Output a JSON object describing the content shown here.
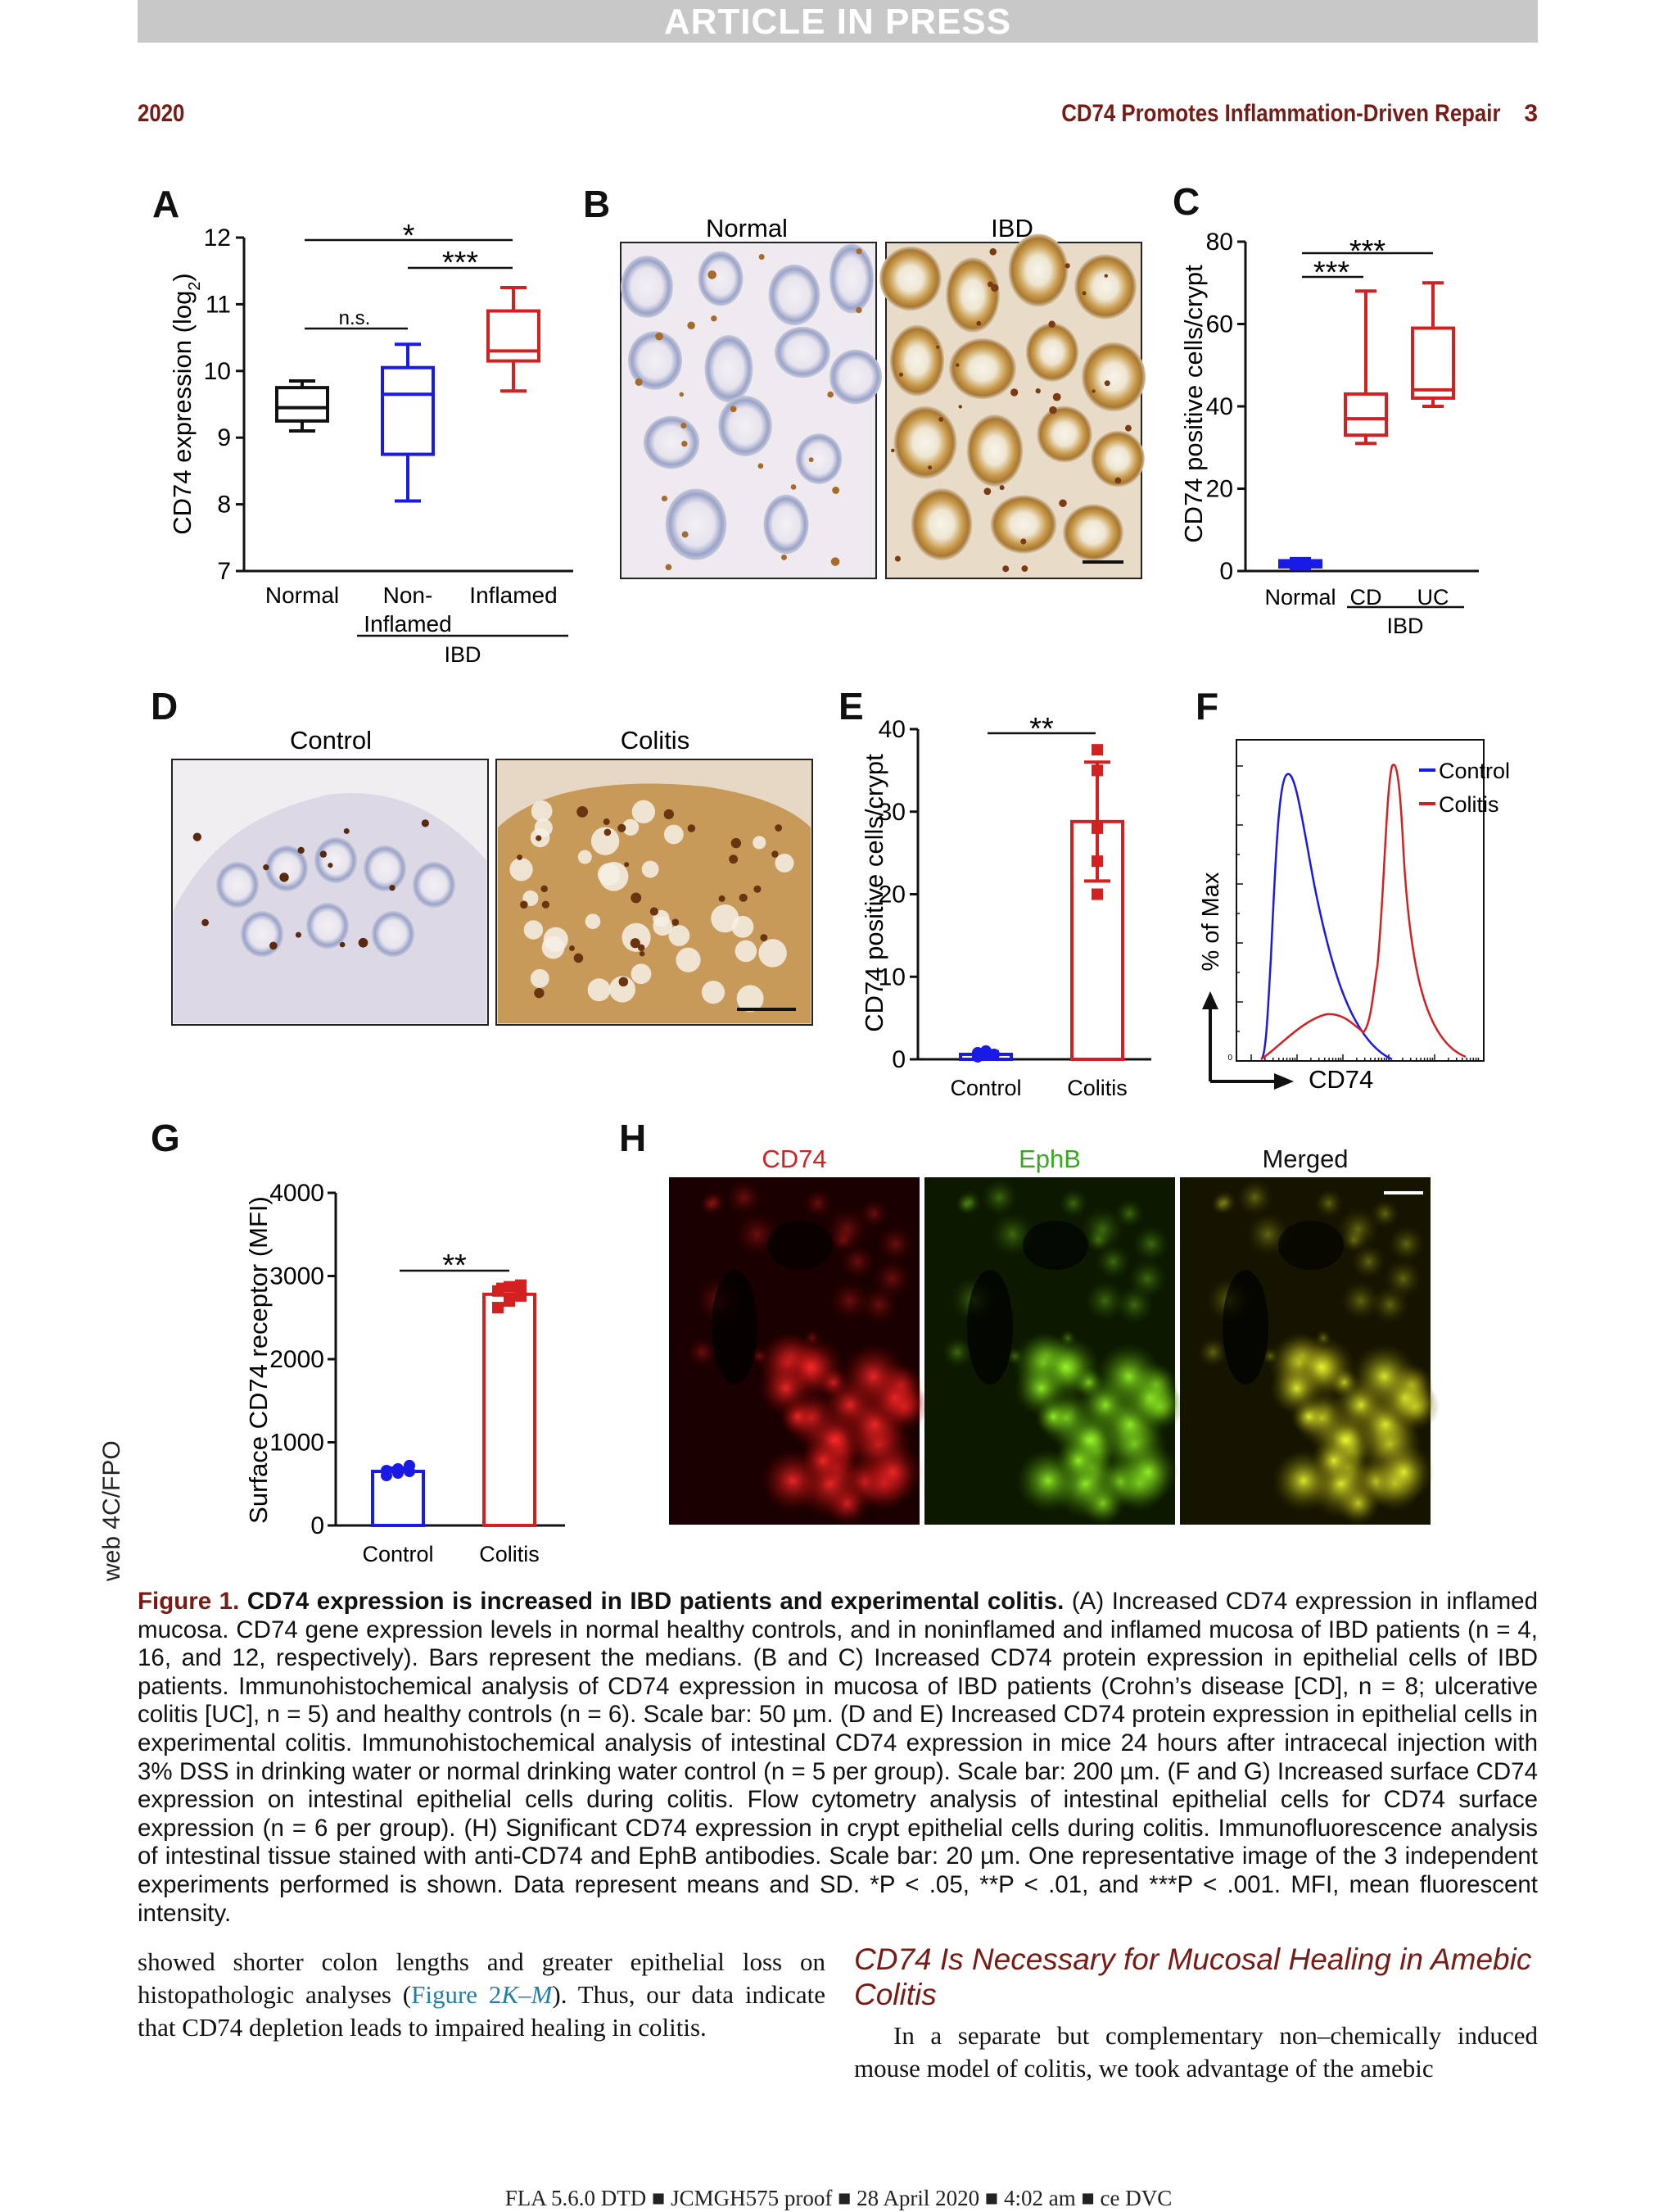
{
  "banner": "ARTICLE IN PRESS",
  "running_head": {
    "year": "2020",
    "title": "CD74 Promotes Inflammation-Driven Repair",
    "page": "3"
  },
  "side_note": "web 4C/FPO",
  "panels": {
    "A": {
      "letter": "A"
    },
    "B": {
      "letter": "B",
      "left_label": "Normal",
      "right_label": "IBD"
    },
    "C": {
      "letter": "C"
    },
    "D": {
      "letter": "D",
      "left_label": "Control",
      "right_label": "Colitis"
    },
    "E": {
      "letter": "E"
    },
    "F": {
      "letter": "F"
    },
    "G": {
      "letter": "G"
    },
    "H": {
      "letter": "H",
      "ch1": "CD74",
      "ch2": "EphB",
      "ch3": "Merged"
    }
  },
  "colors": {
    "normal": "#111111",
    "noninflamed": "#1a1ae6",
    "inflamed": "#d42020",
    "control": "#1a1ae6",
    "colitis": "#d42020"
  },
  "chart_data": [
    {
      "panel": "A",
      "type": "box",
      "ylabel": "CD74 expression (log",
      "ylabel_sub": "2",
      "ylabel_end": ")",
      "ylim": [
        7,
        12
      ],
      "yticks": [
        7,
        8,
        9,
        10,
        11,
        12
      ],
      "categories": [
        "Normal",
        "Non-\nInflamed",
        "Inflamed"
      ],
      "group_label": "IBD",
      "boxes": [
        {
          "name": "Normal",
          "min": 9.1,
          "q1": 9.25,
          "median": 9.45,
          "q3": 9.75,
          "max": 9.85
        },
        {
          "name": "Non-Inflamed",
          "min": 8.05,
          "q1": 8.75,
          "median": 9.65,
          "q3": 10.05,
          "max": 10.4
        },
        {
          "name": "Inflamed",
          "min": 9.7,
          "q1": 10.15,
          "median": 10.3,
          "q3": 10.9,
          "max": 11.25
        }
      ],
      "annotations": [
        "*",
        "***",
        "n.s."
      ]
    },
    {
      "panel": "C",
      "type": "box",
      "ylabel": "CD74 positive cells/crypt",
      "ylim": [
        0,
        80
      ],
      "yticks": [
        0,
        20,
        40,
        60,
        80
      ],
      "categories": [
        "Normal",
        "CD",
        "UC"
      ],
      "group_label": "IBD",
      "boxes": [
        {
          "name": "Normal",
          "min": 0.5,
          "q1": 1,
          "median": 1.5,
          "q3": 2.5,
          "max": 3
        },
        {
          "name": "CD",
          "min": 31,
          "q1": 33,
          "median": 37,
          "q3": 43,
          "max": 68
        },
        {
          "name": "UC",
          "min": 40,
          "q1": 42,
          "median": 44,
          "q3": 59,
          "max": 70
        }
      ],
      "annotations": [
        "***",
        "***"
      ]
    },
    {
      "panel": "E",
      "type": "bar",
      "ylabel": "CD74 positive cells/crypt",
      "ylim": [
        0,
        40
      ],
      "yticks": [
        0,
        10,
        20,
        30,
        40
      ],
      "categories": [
        "Control",
        "Colitis"
      ],
      "values": [
        0.6,
        28.8
      ],
      "sd": [
        0.3,
        7.2
      ],
      "points": [
        [
          0.3,
          0.5,
          0.6,
          0.8,
          1.0
        ],
        [
          20,
          24,
          28,
          35,
          37.5
        ]
      ],
      "annotations": [
        "**"
      ]
    },
    {
      "panel": "F",
      "type": "line",
      "xlabel": "CD74",
      "ylabel": "% of Max",
      "y_tick_label": "0",
      "series": [
        {
          "name": "Control"
        },
        {
          "name": "Colitis"
        }
      ]
    },
    {
      "panel": "G",
      "type": "bar",
      "ylabel": "Surface CD74 receptor (MFI)",
      "ylim": [
        0,
        4000
      ],
      "yticks": [
        0,
        1000,
        2000,
        3000,
        4000
      ],
      "categories": [
        "Control",
        "Colitis"
      ],
      "values": [
        650,
        2780
      ],
      "sd": [
        40,
        120
      ],
      "points": [
        [
          600,
          630,
          650,
          660,
          680,
          720
        ],
        [
          2620,
          2700,
          2760,
          2820,
          2870,
          2890
        ]
      ],
      "annotations": [
        "**"
      ]
    }
  ],
  "caption": {
    "label": "Figure 1.",
    "title": "CD74 expression is increased in IBD patients and experimental colitis.",
    "body": "(A) Increased CD74 expression in inflamed mucosa. CD74 gene expression levels in normal healthy controls, and in noninflamed and inflamed mucosa of IBD patients (n = 4, 16, and 12, respectively). Bars represent the medians. (B and C) Increased CD74 protein expression in epithelial cells of IBD patients. Immunohistochemical analysis of CD74 expression in mucosa of IBD patients (Crohn’s disease [CD], n = 8; ulcerative colitis [UC], n = 5) and healthy controls (n = 6). Scale bar: 50 µm. (D and E) Increased CD74 protein expression in epithelial cells in experimental colitis. Immunohistochemical analysis of intestinal CD74 expression in mice 24 hours after intracecal injection with 3% DSS in drinking water or normal drinking water control (n = 5 per group). Scale bar: 200 µm. (F and G) Increased surface CD74 expression on intestinal epithelial cells during colitis. Flow cytometry analysis of intestinal epithelial cells for CD74 surface expression (n = 6 per group). (H) Significant CD74 expression in crypt epithelial cells during colitis. Immunofluorescence analysis of intestinal tissue stained with anti-CD74 and EphB antibodies. Scale bar: 20 µm. One representative image of the 3 independent experiments performed is shown. Data represent means and SD. *P < .05, **P < .01, and ***P < .001. MFI, mean fluorescent intensity."
  },
  "body_left": {
    "text_before": "showed shorter colon lengths and greater epithelial loss on histopathologic analyses (",
    "link": "Figure 2",
    "link_suffix": "K–M",
    "text_after": "). Thus, our data indicate that CD74 depletion leads to impaired healing in colitis."
  },
  "section_heading": "CD74 Is Necessary for Mucosal Healing in Amebic Colitis",
  "body_right": "In a separate but complementary non–chemically induced mouse model of colitis, we took advantage of the amebic",
  "footer": "FLA 5.6.0 DTD ■ JCMGH575 proof ■ 28 April 2020 ■ 4:02 am ■ ce DVC"
}
